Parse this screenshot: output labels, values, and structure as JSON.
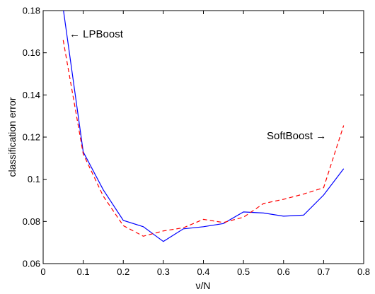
{
  "chart_data": {
    "type": "line",
    "xlabel": "ν/N",
    "ylabel": "classification error",
    "xlim": [
      0,
      0.8
    ],
    "ylim": [
      0.06,
      0.18
    ],
    "xticks": [
      "0",
      "0.1",
      "0.2",
      "0.3",
      "0.4",
      "0.5",
      "0.6",
      "0.7",
      "0.8"
    ],
    "yticks": [
      "0.06",
      "0.08",
      "0.1",
      "0.12",
      "0.14",
      "0.16",
      "0.18"
    ],
    "grid": false,
    "series": [
      {
        "name": "LPBoost",
        "color": "#0000ff",
        "style": "solid",
        "x": [
          0.05,
          0.1,
          0.15,
          0.2,
          0.25,
          0.3,
          0.35,
          0.4,
          0.45,
          0.5,
          0.55,
          0.6,
          0.65,
          0.7,
          0.75
        ],
        "y": [
          0.181,
          0.113,
          0.095,
          0.0805,
          0.0775,
          0.0705,
          0.0765,
          0.0775,
          0.079,
          0.0845,
          0.084,
          0.0825,
          0.083,
          0.0925,
          0.105
        ]
      },
      {
        "name": "SoftBoost",
        "color": "#ff0000",
        "style": "dashed",
        "x": [
          0.05,
          0.1,
          0.15,
          0.2,
          0.25,
          0.3,
          0.35,
          0.4,
          0.45,
          0.5,
          0.55,
          0.6,
          0.65,
          0.7,
          0.75
        ],
        "y": [
          0.166,
          0.112,
          0.092,
          0.078,
          0.073,
          0.0755,
          0.077,
          0.081,
          0.0795,
          0.082,
          0.0885,
          0.0905,
          0.093,
          0.096,
          0.1255
        ]
      }
    ],
    "annotations": [
      "← LPBoost",
      "SoftBoost →"
    ]
  }
}
